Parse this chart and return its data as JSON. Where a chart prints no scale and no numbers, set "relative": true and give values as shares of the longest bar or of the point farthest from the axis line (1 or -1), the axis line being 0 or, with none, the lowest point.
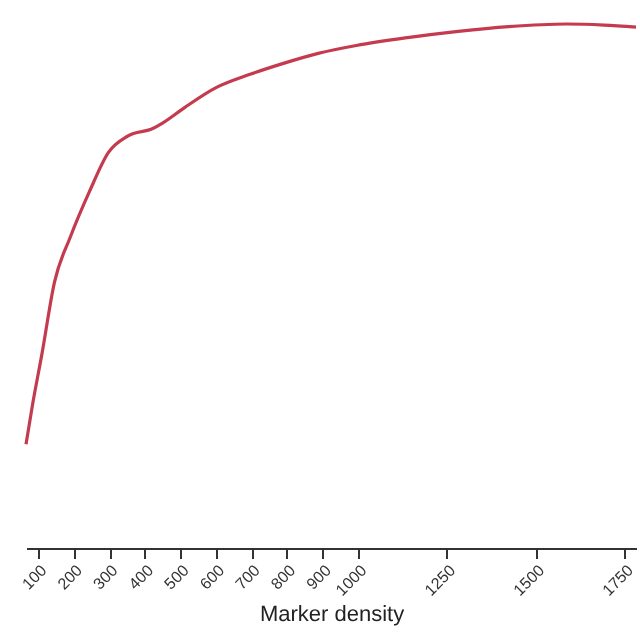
{
  "chart_data": {
    "type": "line",
    "relative": true,
    "xlabel": "Marker density",
    "xlim": [
      66,
      1782
    ],
    "xticks": [
      100,
      200,
      300,
      400,
      500,
      600,
      700,
      800,
      900,
      1000,
      1250,
      1500,
      1750
    ],
    "grid": false,
    "marker": "none",
    "series": [
      {
        "color": "#c43a4f",
        "x": [
          66,
          84,
          111,
          146,
          191,
          245,
          298,
          352,
          424,
          450,
          513,
          602,
          692,
          781,
          888,
          995,
          1139,
          1282,
          1424,
          1585,
          1692,
          1782
        ],
        "values": [
          0.198,
          0.272,
          0.371,
          0.507,
          0.594,
          0.681,
          0.755,
          0.786,
          0.801,
          0.811,
          0.841,
          0.879,
          0.903,
          0.923,
          0.944,
          0.959,
          0.974,
          0.986,
          0.995,
          1.0,
          0.998,
          0.994
        ]
      }
    ]
  }
}
